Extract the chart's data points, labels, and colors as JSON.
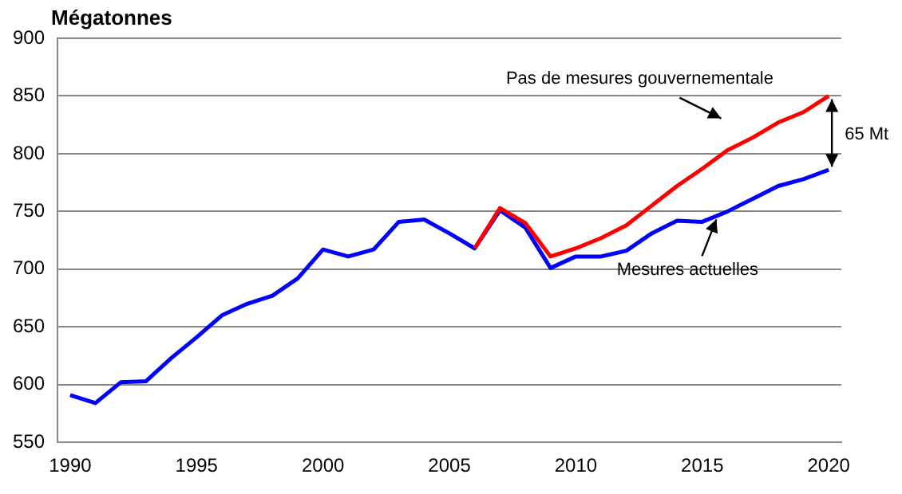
{
  "chart_data": {
    "type": "line",
    "ylabel": "Mégatonnes",
    "xlim": [
      1989.5,
      2020.5
    ],
    "xticks": [
      1990,
      1995,
      2000,
      2005,
      2010,
      2015,
      2020
    ],
    "ylim": [
      550,
      900
    ],
    "yticks": [
      550,
      600,
      650,
      700,
      750,
      800,
      850,
      900
    ],
    "grid": "y",
    "legend": false,
    "marker": "none",
    "line_style": "solid",
    "annotations": [
      "65 Mt"
    ],
    "series": [
      {
        "name": "Pas de mesures gouvernementale",
        "color": "#ff0000",
        "x": [
          2006,
          2007,
          2008,
          2009,
          2010,
          2011,
          2012,
          2013,
          2014,
          2015,
          2016,
          2017,
          2018,
          2019,
          2020
        ],
        "values": [
          718,
          753,
          740,
          711,
          718,
          727,
          738,
          755,
          772,
          787,
          803,
          814,
          827,
          836,
          850
        ]
      },
      {
        "name": "Mesures actuelles",
        "color": "#0000ff",
        "x": [
          1990,
          1991,
          1992,
          1993,
          1994,
          1995,
          1996,
          1997,
          1998,
          1999,
          2000,
          2001,
          2002,
          2003,
          2004,
          2005,
          2006,
          2007,
          2008,
          2009,
          2010,
          2011,
          2012,
          2013,
          2014,
          2015,
          2016,
          2017,
          2018,
          2019,
          2020
        ],
        "values": [
          591,
          584,
          602,
          603,
          623,
          641,
          660,
          670,
          677,
          692,
          717,
          711,
          717,
          741,
          743,
          731,
          718,
          751,
          736,
          701,
          711,
          711,
          716,
          731,
          742,
          741,
          750,
          761,
          772,
          778,
          786
        ]
      }
    ]
  }
}
